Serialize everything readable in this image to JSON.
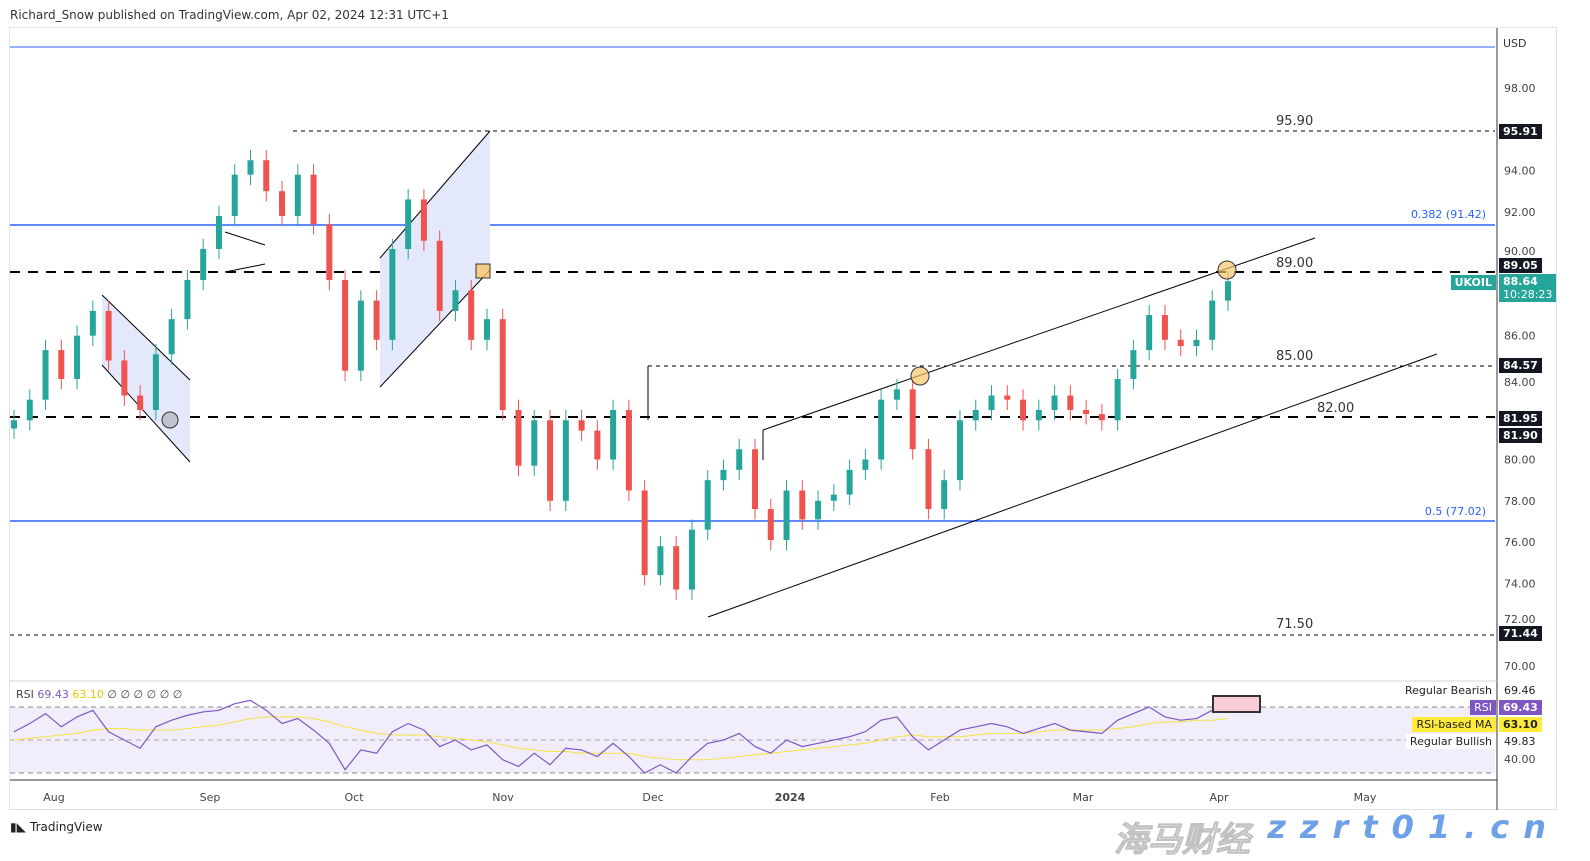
{
  "header": {
    "publisher": "Richard_Snow published on TradingView.com, Apr 02, 2024 12:31 UTC+1"
  },
  "footer": {
    "brand": "TradingView"
  },
  "watermark": {
    "cn": "海马财经",
    "url": "zzrt01.cn"
  },
  "colors": {
    "up": "#26a69a",
    "down": "#ef5350",
    "level_line": "#2962ff",
    "rsi": "#7e57c2",
    "rsi_ma": "#ffeb3b"
  },
  "chart_data": [
    {
      "type": "candlestick",
      "symbol": "UKOIL",
      "currency": "USD",
      "ylim": [
        69,
        100
      ],
      "yticks": [
        "98.00",
        "94.00",
        "92.00",
        "90.00",
        "86.00",
        "84.00",
        "80.00",
        "78.00",
        "76.00",
        "74.00",
        "72.00",
        "70.00"
      ],
      "xticks": [
        "Aug",
        "Sep",
        "Oct",
        "Nov",
        "Dec",
        "2024",
        "Feb",
        "Mar",
        "Apr",
        "May"
      ],
      "closes": [
        81.9,
        82.9,
        85.3,
        83.9,
        86,
        87.2,
        84.8,
        83.1,
        82.4,
        85.1,
        86.8,
        88.7,
        90.2,
        91.8,
        93.8,
        94.5,
        93,
        91.8,
        93.8,
        91.4,
        88.7,
        84.3,
        87.7,
        85.8,
        90.2,
        92.6,
        90.6,
        87.2,
        88.2,
        85.8,
        86.8,
        82.4,
        79.7,
        81.9,
        78,
        81.9,
        81.4,
        80,
        82.4,
        78.5,
        74.4,
        75.8,
        73.7,
        76.6,
        79,
        79.5,
        80.5,
        77.6,
        76.1,
        78.5,
        77.1,
        78,
        78.3,
        79.5,
        80,
        82.9,
        83.4,
        80.5,
        77.6,
        79,
        81.9,
        82.4,
        83.1,
        82.9,
        81.9,
        82.4,
        83.1,
        82.4,
        82.2,
        81.9,
        83.9,
        85.3,
        87,
        85.8,
        85.5,
        85.8,
        87.7,
        88.64
      ],
      "levels": [
        {
          "label": "95.90",
          "axis": "95.91"
        },
        {
          "label": "0.382 (91.42)"
        },
        {
          "label": "89.00",
          "axis": "89.05"
        },
        {
          "label": "85.00",
          "axis": "84.57"
        },
        {
          "label": "82.00",
          "axis": "81.95"
        },
        {
          "label": "0.5 (77.02)"
        },
        {
          "label": "71.50",
          "axis": "71.44"
        }
      ],
      "last": {
        "symbol": "UKOIL",
        "price": "88.64",
        "countdown": "10:28:23",
        "extra_axis": "81.90"
      }
    },
    {
      "type": "line",
      "title": "RSI",
      "legend": {
        "rsi": "69.43",
        "ma": "63.10",
        "extras": "∅ ∅ ∅ ∅ ∅ ∅"
      },
      "rsi": [
        55,
        60,
        66,
        58,
        64,
        68,
        55,
        50,
        45,
        58,
        62,
        65,
        67,
        68,
        72,
        74,
        68,
        60,
        63,
        56,
        48,
        32,
        44,
        42,
        55,
        60,
        56,
        46,
        50,
        44,
        47,
        38,
        34,
        42,
        35,
        45,
        44,
        40,
        48,
        40,
        30,
        35,
        30,
        40,
        48,
        50,
        54,
        46,
        42,
        50,
        46,
        48,
        50,
        52,
        55,
        62,
        64,
        52,
        44,
        50,
        56,
        58,
        60,
        58,
        54,
        57,
        60,
        56,
        55,
        54,
        62,
        66,
        70,
        64,
        62,
        63,
        68,
        69.43
      ],
      "ma": [
        50,
        51,
        52,
        53,
        54,
        56,
        57,
        57,
        56,
        56,
        56,
        57,
        58,
        59,
        61,
        63,
        64,
        64,
        64,
        63,
        61,
        58,
        56,
        54,
        53,
        53,
        53,
        52,
        51,
        50,
        49,
        47,
        45,
        44,
        43,
        43,
        42,
        42,
        42,
        42,
        40,
        39,
        38,
        38,
        38,
        39,
        40,
        41,
        42,
        43,
        44,
        45,
        46,
        47,
        48,
        50,
        52,
        53,
        52,
        52,
        52,
        53,
        54,
        54,
        54,
        55,
        56,
        56,
        56,
        56,
        57,
        58,
        60,
        61,
        61,
        62,
        62,
        63.1
      ],
      "axis": {
        "bearish_label": "Regular Bearish",
        "bearish_val": "69.46",
        "rsi_tag": "RSI",
        "rsi_val": "69.43",
        "ma_tag": "RSI-based MA",
        "ma_val": "63.10",
        "bullish_label": "Regular Bullish",
        "bullish_val": "49.83",
        "tick40": "40.00"
      }
    }
  ]
}
